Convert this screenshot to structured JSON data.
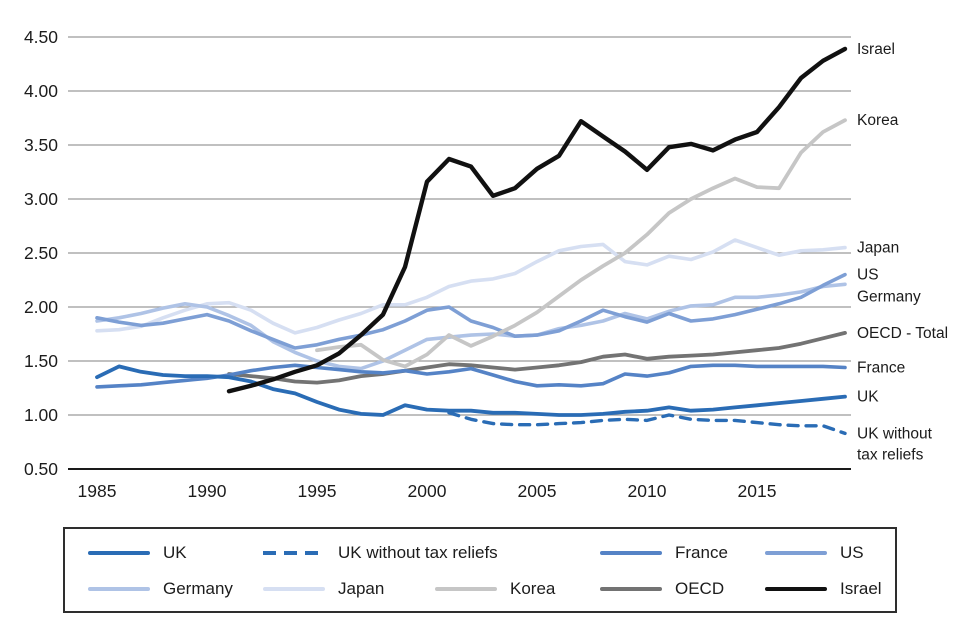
{
  "chart_data": {
    "type": "line",
    "title": "",
    "xlabel": "",
    "ylabel": "",
    "ylim": [
      0.5,
      4.5
    ],
    "ytick_step": 0.5,
    "yticks": [
      0.5,
      1.0,
      1.5,
      2.0,
      2.5,
      3.0,
      3.5,
      4.0,
      4.5
    ],
    "ytick_labels": [
      "0.50",
      "1.00",
      "1.50",
      "2.00",
      "2.50",
      "3.00",
      "3.50",
      "4.00",
      "4.50"
    ],
    "xticks": [
      1985,
      1990,
      1995,
      2000,
      2005,
      2010,
      2015
    ],
    "x_start": 1985,
    "x_end": 2019,
    "grid": "horizontal",
    "legend_position": "bottom",
    "series": [
      {
        "name": "Japan",
        "right_label": "Japan",
        "color": "#d6dff2",
        "dash": false,
        "width": 3.6,
        "start_year": 1985,
        "values": [
          1.78,
          1.79,
          1.82,
          1.9,
          1.97,
          2.03,
          2.04,
          1.97,
          1.85,
          1.76,
          1.81,
          1.88,
          1.94,
          2.02,
          2.02,
          2.09,
          2.19,
          2.24,
          2.26,
          2.31,
          2.42,
          2.52,
          2.56,
          2.58,
          2.42,
          2.39,
          2.47,
          2.44,
          2.51,
          2.62,
          2.55,
          2.48,
          2.52,
          2.53,
          2.55
        ]
      },
      {
        "name": "Germany",
        "right_label": "Germany",
        "color": "#afc3e6",
        "dash": false,
        "width": 3.6,
        "start_year": 1985,
        "values": [
          1.87,
          1.9,
          1.94,
          1.99,
          2.03,
          2.0,
          1.92,
          1.83,
          1.68,
          1.58,
          1.5,
          1.45,
          1.43,
          1.5,
          1.6,
          1.7,
          1.72,
          1.74,
          1.75,
          1.73,
          1.74,
          1.8,
          1.83,
          1.87,
          1.94,
          1.89,
          1.96,
          2.01,
          2.02,
          2.09,
          2.09,
          2.11,
          2.14,
          2.19,
          2.21
        ]
      },
      {
        "name": "US",
        "right_label": "US",
        "color": "#7e9fd5",
        "dash": false,
        "width": 3.6,
        "start_year": 1985,
        "values": [
          1.9,
          1.86,
          1.83,
          1.85,
          1.89,
          1.93,
          1.87,
          1.78,
          1.7,
          1.62,
          1.65,
          1.7,
          1.74,
          1.79,
          1.87,
          1.97,
          2.0,
          1.87,
          1.81,
          1.73,
          1.74,
          1.78,
          1.87,
          1.97,
          1.91,
          1.86,
          1.94,
          1.87,
          1.89,
          1.93,
          1.98,
          2.03,
          2.09,
          2.2,
          2.3
        ]
      },
      {
        "name": "Korea",
        "right_label": "Korea",
        "color": "#c6c6c6",
        "dash": false,
        "width": 3.8,
        "start_year": 1995,
        "values": [
          1.6,
          1.63,
          1.65,
          1.51,
          1.45,
          1.56,
          1.74,
          1.64,
          1.73,
          1.83,
          1.95,
          2.1,
          2.25,
          2.38,
          2.5,
          2.67,
          2.87,
          3.0,
          3.1,
          3.19,
          3.11,
          3.1,
          3.43,
          3.62,
          3.73
        ]
      },
      {
        "name": "OECD",
        "right_label": "OECD - Total",
        "color": "#737373",
        "dash": false,
        "width": 3.8,
        "start_year": 1991,
        "values": [
          1.38,
          1.36,
          1.34,
          1.31,
          1.3,
          1.32,
          1.36,
          1.38,
          1.41,
          1.44,
          1.47,
          1.46,
          1.44,
          1.42,
          1.44,
          1.46,
          1.49,
          1.54,
          1.56,
          1.52,
          1.54,
          1.55,
          1.56,
          1.58,
          1.6,
          1.62,
          1.66,
          1.71,
          1.76
        ]
      },
      {
        "name": "France",
        "right_label": "France",
        "color": "#5583c6",
        "dash": false,
        "width": 3.6,
        "start_year": 1985,
        "values": [
          1.26,
          1.27,
          1.28,
          1.3,
          1.32,
          1.34,
          1.37,
          1.41,
          1.44,
          1.46,
          1.44,
          1.42,
          1.4,
          1.39,
          1.41,
          1.38,
          1.4,
          1.43,
          1.37,
          1.31,
          1.27,
          1.28,
          1.27,
          1.29,
          1.38,
          1.36,
          1.39,
          1.45,
          1.46,
          1.46,
          1.45,
          1.45,
          1.45,
          1.45,
          1.44
        ]
      },
      {
        "name": "UK without tax reliefs",
        "right_label": "UK without\ntax reliefs",
        "color": "#2a6cb5",
        "dash": true,
        "width": 3.4,
        "start_year": 2001,
        "values": [
          1.02,
          0.96,
          0.92,
          0.91,
          0.91,
          0.92,
          0.93,
          0.95,
          0.96,
          0.95,
          1.0,
          0.96,
          0.95,
          0.95,
          0.93,
          0.91,
          0.9,
          0.9,
          0.83
        ]
      },
      {
        "name": "UK",
        "right_label": "UK",
        "color": "#2a6cb5",
        "dash": false,
        "width": 3.8,
        "start_year": 1985,
        "values": [
          1.35,
          1.45,
          1.4,
          1.37,
          1.36,
          1.36,
          1.35,
          1.31,
          1.24,
          1.2,
          1.12,
          1.05,
          1.01,
          1.0,
          1.09,
          1.05,
          1.04,
          1.04,
          1.02,
          1.02,
          1.01,
          1.0,
          1.0,
          1.01,
          1.03,
          1.04,
          1.07,
          1.04,
          1.05,
          1.07,
          1.09,
          1.11,
          1.13,
          1.15,
          1.17
        ]
      },
      {
        "name": "Israel",
        "right_label": "Israel",
        "color": "#111111",
        "dash": false,
        "width": 4.4,
        "start_year": 1991,
        "values": [
          1.22,
          1.27,
          1.33,
          1.4,
          1.46,
          1.57,
          1.74,
          1.93,
          2.37,
          3.16,
          3.37,
          3.3,
          3.03,
          3.1,
          3.28,
          3.4,
          3.72,
          3.58,
          3.44,
          3.27,
          3.48,
          3.51,
          3.45,
          3.55,
          3.62,
          3.85,
          4.12,
          4.28,
          4.39
        ]
      }
    ]
  },
  "legend": {
    "items": [
      {
        "label": "UK",
        "series": "UK"
      },
      {
        "label": "UK without tax reliefs",
        "series": "UK without tax reliefs"
      },
      {
        "label": "France",
        "series": "France"
      },
      {
        "label": "US",
        "series": "US"
      },
      {
        "label": "Germany",
        "series": "Germany"
      },
      {
        "label": "Japan",
        "series": "Japan"
      },
      {
        "label": "Korea",
        "series": "Korea"
      },
      {
        "label": "OECD",
        "series": "OECD"
      },
      {
        "label": "Israel",
        "series": "Israel"
      }
    ]
  },
  "colors": {
    "gridline": "#9b9b9b",
    "axis": "#1a1a1a",
    "text": "#1c1c1c"
  }
}
